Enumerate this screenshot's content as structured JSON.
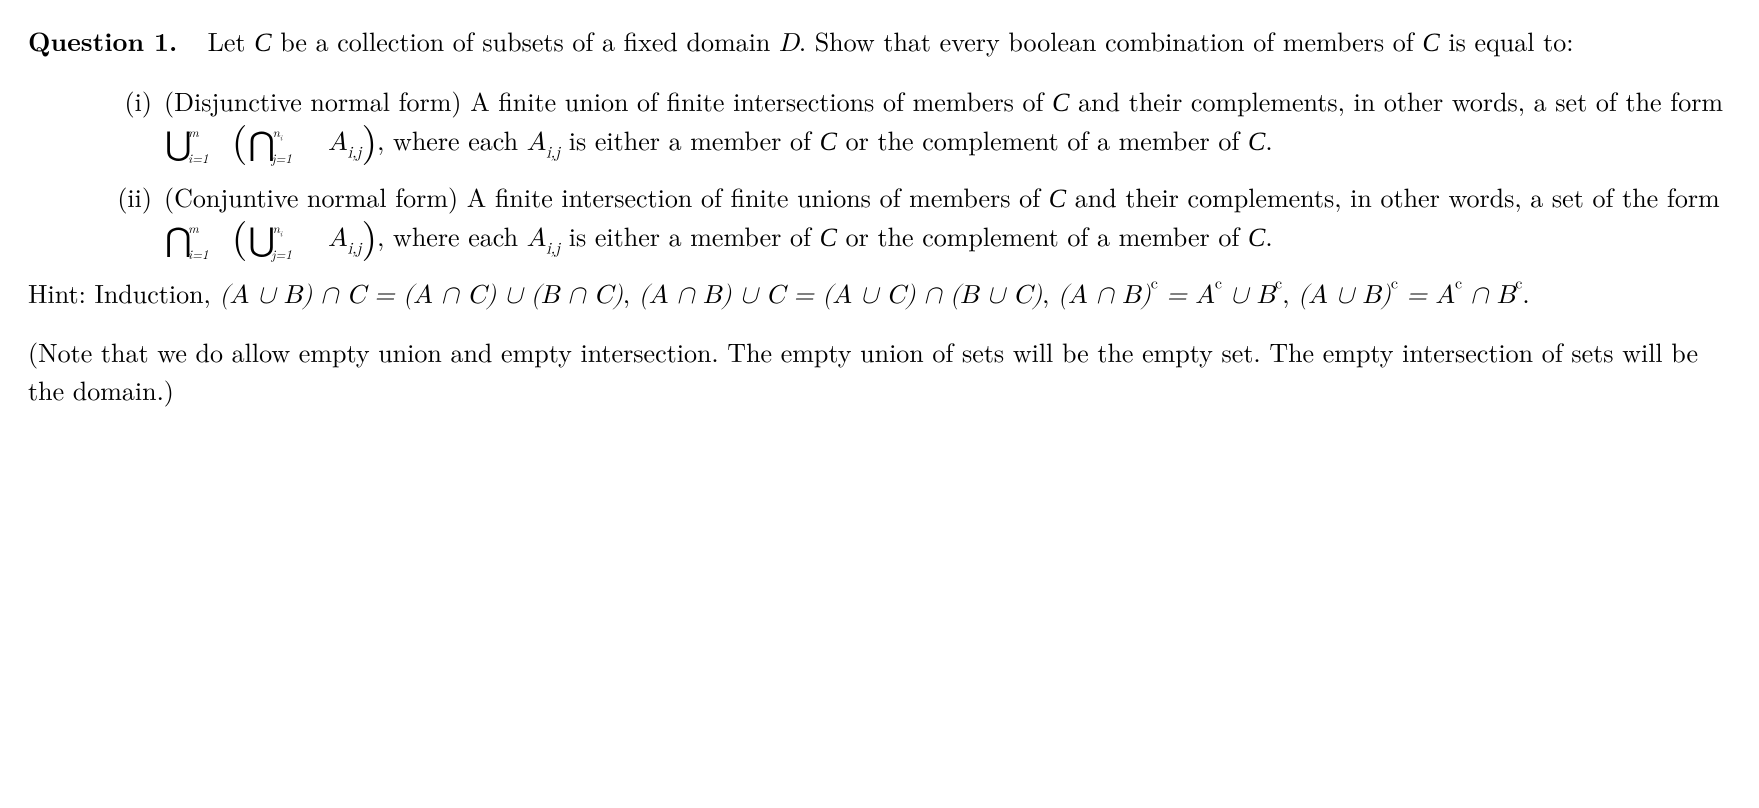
{
  "q": {
    "label": "Question 1.",
    "intro_a": "Let ",
    "intro_b": " be a collection of subsets of a fixed domain ",
    "intro_c": ". Show that every boolean combination of members of ",
    "intro_d": " is equal to:",
    "domain_var": "D"
  },
  "C_glyph": "C",
  "items": {
    "i": {
      "marker": "(i)",
      "title": "(Disjunctive normal form) ",
      "text_a": "A finite union of finite intersections of members of ",
      "text_b": " and their complements, in other words, a set of the form ",
      "text_c": ", where each ",
      "text_d": " is either a member of ",
      "text_e": " or the complement of a member of ",
      "text_f": "."
    },
    "ii": {
      "marker": "(ii)",
      "title": "(Conjuntive normal form) ",
      "text_a": "A finite intersection of finite unions of members of ",
      "text_b": " and their complements, in other words, a set of the form ",
      "text_c": ", where each ",
      "text_d": " is either a member of ",
      "text_e": " or the complement of a member of ",
      "text_f": "."
    }
  },
  "math": {
    "union": "⋃",
    "inter": "⋂",
    "cup": "∪",
    "cap": "∩",
    "m": "m",
    "ni": "n",
    "ni_sub": "i",
    "idx_outer_lo": "i=1",
    "idx_inner_lo": "j=1",
    "A": "A",
    "A_sub": "i,j",
    "lp": "(",
    "rp": ")"
  },
  "hint": {
    "label": "Hint: Induction, ",
    "eq1_l": "(A ∪ B) ∩ C",
    "eq1_r": "(A ∩ C) ∪ (B ∩ C)",
    "eq2_l": "(A ∩ B) ∪ C",
    "eq2_r": "(A ∪ C) ∩ (B ∪ C)",
    "eq3_l_a": "(A ∩ B)",
    "eq3_r_a": "A",
    "eq3_r_b": " ∪ B",
    "eq4_l_a": "(A ∪ B)",
    "eq4_r_a": "A",
    "eq4_r_b": " ∩ B",
    "c": "c",
    "eq": " = ",
    "comma": ", ",
    "period": "."
  },
  "note": {
    "text": "(Note that we do allow empty union and empty intersection. The empty union of sets will be the empty set. The empty intersection of sets will be the domain.)"
  }
}
